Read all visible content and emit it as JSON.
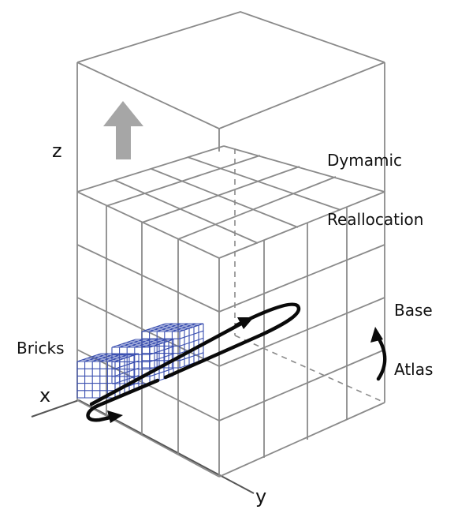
{
  "labels": {
    "z_axis": "z",
    "x_axis": "x",
    "y_axis": "y",
    "dynamic_line1": "Dymamic",
    "dynamic_line2": "Reallocation",
    "base_line1": "Base",
    "base_line2": "Atlas",
    "bricks": "Bricks"
  },
  "colors": {
    "grid": "#8a8a8a",
    "brick": "#3a4fb0",
    "arrow": "#0a0a0a",
    "up_arrow": "#a6a6a6",
    "axis": "#555555"
  },
  "icons": {
    "up_arrow": "up-arrow-icon",
    "rotation": "rotation-arrow-icon"
  }
}
